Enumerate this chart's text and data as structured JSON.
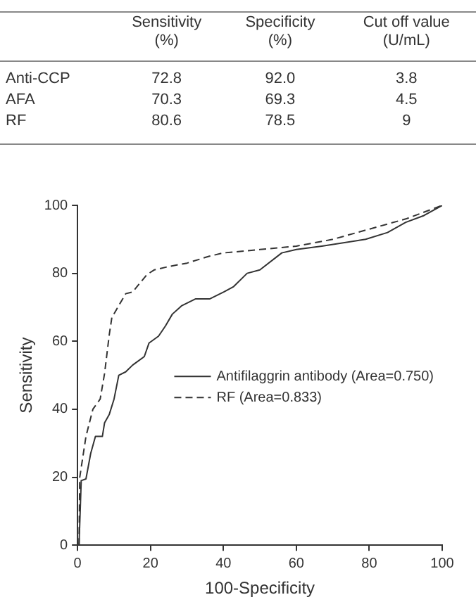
{
  "chart_data": {
    "type": "line",
    "xlabel": "100-Specificity",
    "ylabel": "Sensitivity",
    "xlim": [
      0,
      100
    ],
    "xticks": [
      0,
      20,
      40,
      60,
      80,
      100
    ],
    "ylim": [
      0,
      100
    ],
    "yticks": [
      0,
      20,
      40,
      60,
      80,
      100
    ],
    "grid": false,
    "legend": "bottom right",
    "marker": "none",
    "annotations": [
      "Sensitivity\n(%)",
      "Specificity\n(%)",
      "Cut off value\n(U/mL)",
      "Anti-CCP",
      "72.8",
      "92.0",
      "3.8",
      "AFA",
      "70.3",
      "69.3",
      "4.5",
      "RF",
      "80.6",
      "78.5",
      "9"
    ],
    "series": [
      {
        "name": "Antifilaggrin antibody (Area=0.750)",
        "color": "#333333",
        "line_style": "solid",
        "x": [
          0.4,
          1,
          2.3,
          3.6,
          4.9,
          6.8,
          7.4,
          8.7,
          10,
          11.3,
          13.2,
          15.1,
          18.3,
          19.6,
          22.2,
          24.1,
          26,
          28.6,
          32.4,
          36.3,
          40.1,
          42.7,
          46.5,
          50,
          56,
          60,
          67,
          79,
          85,
          90,
          95,
          100
        ],
        "values": [
          0,
          19,
          19.5,
          27,
          32,
          32,
          36,
          38.5,
          43,
          50,
          51,
          53,
          55.5,
          59.5,
          61.5,
          64.5,
          68,
          70.5,
          72.5,
          72.5,
          74.5,
          76,
          80,
          81,
          86,
          87,
          88,
          90,
          92,
          95,
          97,
          100
        ]
      },
      {
        "name": "RF (Area=0.833)",
        "color": "#333333",
        "line_style": "dashed",
        "x": [
          0.4,
          0.6,
          2.3,
          4.2,
          6.2,
          7.4,
          8.7,
          9.4,
          13.2,
          15.1,
          17,
          19,
          21,
          25,
          30,
          36,
          40,
          50,
          60,
          70,
          80,
          90,
          100
        ],
        "values": [
          0,
          20,
          32,
          40,
          43,
          50.5,
          62,
          67,
          74,
          74.5,
          77,
          79.6,
          81,
          82,
          83,
          85,
          86,
          87,
          88,
          90,
          93,
          96,
          100
        ]
      }
    ]
  }
}
